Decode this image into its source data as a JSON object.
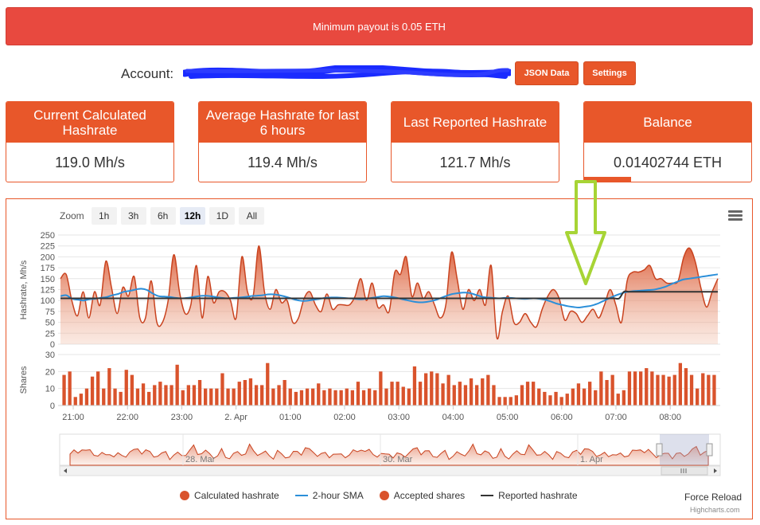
{
  "banner": {
    "text": "Minimum payout is 0.05 ETH"
  },
  "account": {
    "label": "Account:",
    "json_button": "JSON Data",
    "settings_button": "Settings"
  },
  "stats": [
    {
      "title": "Current Calculated Hashrate",
      "value": "119.0 Mh/s"
    },
    {
      "title": "Average Hashrate for last 6 hours",
      "value": "119.4 Mh/s"
    },
    {
      "title": "Last Reported Hashrate",
      "value": "121.7 Mh/s"
    },
    {
      "title": "Balance",
      "value": "0.01402744 ETH",
      "progress_fraction": 0.28
    }
  ],
  "zoom": {
    "label": "Zoom",
    "buttons": [
      "1h",
      "3h",
      "6h",
      "12h",
      "1D",
      "All"
    ],
    "selected": "12h"
  },
  "legend": {
    "calc": "Calculated hashrate",
    "sma": "2-hour SMA",
    "shares": "Accepted shares",
    "reported": "Reported hashrate"
  },
  "force_reload": "Force Reload",
  "credits": "Highcharts.com",
  "colors": {
    "accent": "#e8572a",
    "banner": "#e8493f",
    "area": "#d9532c",
    "sma": "#2b8fd9",
    "reported": "#333333",
    "arrow": "#a7d435"
  },
  "chart_data": {
    "type": "area",
    "x_tick_labels": [
      "21:00",
      "22:00",
      "23:00",
      "2. Apr",
      "01:00",
      "02:00",
      "03:00",
      "04:00",
      "05:00",
      "06:00",
      "07:00",
      "08:00"
    ],
    "x_range": [
      "20:50",
      "08:55"
    ],
    "hashrate": {
      "ylabel": "Hashrate, Mh/s",
      "yticks": [
        0,
        25,
        50,
        75,
        100,
        125,
        150,
        175,
        200,
        225,
        250
      ],
      "ylim": [
        0,
        250
      ],
      "calculated": [
        150,
        160,
        100,
        65,
        120,
        60,
        120,
        90,
        190,
        130,
        70,
        130,
        110,
        155,
        60,
        60,
        145,
        50,
        50,
        100,
        205,
        120,
        70,
        90,
        180,
        60,
        155,
        95,
        120,
        120,
        100,
        60,
        200,
        120,
        110,
        225,
        120,
        80,
        125,
        95,
        100,
        50,
        60,
        105,
        120,
        90,
        75,
        115,
        80,
        90,
        90,
        90,
        110,
        150,
        100,
        140,
        85,
        90,
        75,
        165,
        160,
        200,
        110,
        140,
        105,
        120,
        90,
        60,
        90,
        210,
        150,
        80,
        125,
        100,
        125,
        90,
        180,
        15,
        75,
        110,
        50,
        50,
        70,
        50,
        40,
        80,
        110,
        125,
        105,
        55,
        75,
        70,
        50,
        65,
        80,
        60,
        90,
        125,
        90,
        50,
        145,
        165,
        165,
        170,
        180,
        150,
        150,
        140,
        140,
        145,
        200,
        220,
        190,
        130,
        85,
        120,
        150
      ],
      "sma": [
        110,
        112,
        104,
        102,
        100,
        103,
        104,
        106,
        108,
        112,
        115,
        120,
        122,
        125,
        127,
        124,
        116,
        110,
        109,
        108,
        106,
        105,
        106,
        108,
        110,
        111,
        110,
        108,
        106,
        105,
        106,
        107,
        108,
        110,
        111,
        112,
        114,
        114,
        112,
        109,
        105,
        101,
        99,
        100,
        102,
        104,
        106,
        107,
        107,
        106,
        105,
        104,
        103,
        104,
        106,
        108,
        110,
        109,
        107,
        104,
        101,
        98,
        96,
        96,
        98,
        101,
        106,
        111,
        115,
        117,
        118,
        117,
        113,
        109,
        107,
        106,
        105,
        106,
        106,
        105,
        104,
        104,
        105,
        104,
        102,
        98,
        93,
        90,
        87,
        85,
        84,
        86,
        88,
        92,
        98,
        104,
        110,
        115,
        119,
        121,
        122,
        123,
        124,
        125,
        128,
        132,
        138,
        143,
        148,
        150,
        152,
        154,
        156,
        158,
        160
      ],
      "reported": [
        105,
        105,
        105,
        105,
        105,
        105,
        105,
        105,
        105,
        105,
        105,
        105,
        105,
        105,
        105,
        105,
        105,
        105,
        105,
        105,
        105,
        105,
        105,
        105,
        105,
        105,
        105,
        105,
        105,
        105,
        105,
        105,
        105,
        105,
        105,
        105,
        105,
        105,
        105,
        105,
        105,
        105,
        105,
        105,
        105,
        105,
        105,
        105,
        105,
        105,
        105,
        105,
        105,
        105,
        105,
        105,
        105,
        105,
        105,
        105,
        105,
        105,
        105,
        105,
        105,
        105,
        105,
        105,
        105,
        105,
        105,
        105,
        105,
        105,
        105,
        105,
        105,
        105,
        105,
        105,
        105,
        105,
        105,
        105,
        105,
        105,
        105,
        105,
        105,
        105,
        105,
        105,
        105,
        105,
        105,
        105,
        105,
        105,
        105,
        105,
        105,
        105,
        105,
        105,
        105,
        105,
        105,
        105,
        105,
        105,
        105,
        105,
        105,
        105,
        105,
        105,
        105,
        105,
        105,
        105,
        120,
        120,
        120,
        120,
        120,
        120,
        120,
        120,
        120,
        120,
        120,
        120,
        120,
        120,
        120,
        120,
        120,
        120,
        120,
        120,
        120
      ]
    },
    "shares": {
      "ylabel": "Shares",
      "yticks": [
        0,
        10,
        20,
        30
      ],
      "ylim": [
        0,
        30
      ],
      "values": [
        18,
        20,
        5,
        7,
        10,
        17,
        20,
        10,
        22,
        10,
        8,
        21,
        18,
        10,
        13,
        8,
        12,
        14,
        12,
        12,
        24,
        9,
        12,
        12,
        15,
        10,
        10,
        10,
        19,
        10,
        10,
        14,
        15,
        16,
        12,
        12,
        25,
        10,
        12,
        15,
        10,
        8,
        9,
        10,
        10,
        13,
        9,
        10,
        9,
        9,
        10,
        9,
        14,
        9,
        10,
        9,
        20,
        10,
        14,
        14,
        11,
        10,
        23,
        14,
        19,
        20,
        19,
        13,
        18,
        12,
        14,
        12,
        16,
        12,
        16,
        18,
        12,
        5,
        5,
        5,
        6,
        12,
        14,
        14,
        10,
        8,
        6,
        8,
        5,
        7,
        10,
        13,
        10,
        14,
        9,
        20,
        15,
        18,
        7,
        9,
        20,
        20,
        20,
        22,
        20,
        18,
        18,
        17,
        18,
        25,
        22,
        18,
        10,
        19,
        18,
        18
      ]
    },
    "navigator": {
      "labels": [
        "28. Mar",
        "30. Mar",
        "1. Apr"
      ]
    }
  }
}
